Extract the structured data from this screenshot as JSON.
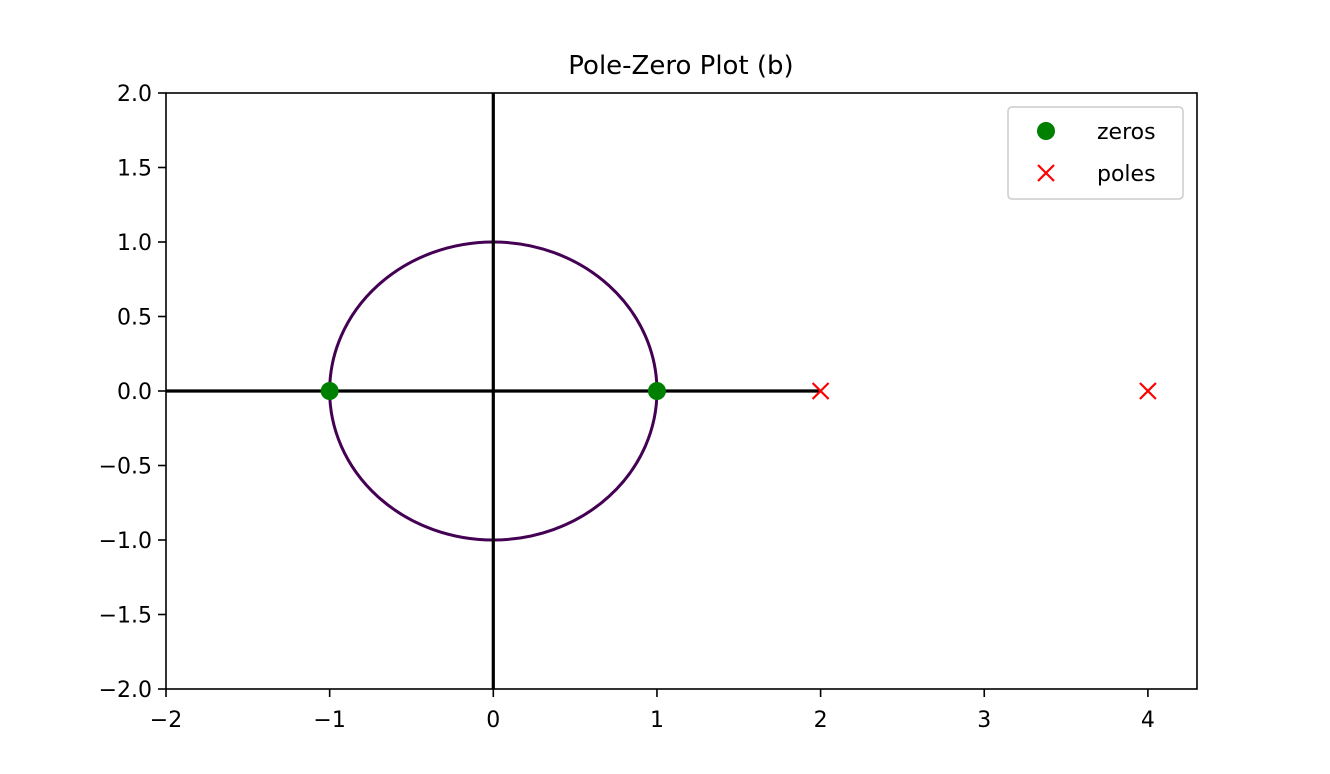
{
  "chart_data": {
    "type": "scatter",
    "title": "Pole-Zero Plot (b)",
    "xlabel": "",
    "ylabel": "",
    "xlim": [
      -2,
      4.3
    ],
    "ylim": [
      -2,
      2
    ],
    "x_ticks": [
      -2,
      -1,
      0,
      1,
      2,
      3,
      4
    ],
    "x_tick_labels": [
      "−2",
      "−1",
      "0",
      "1",
      "2",
      "3",
      "4"
    ],
    "y_ticks": [
      2.0,
      1.5,
      1.0,
      0.5,
      0.0,
      -0.5,
      -1.0,
      -1.5,
      -2.0
    ],
    "y_tick_labels": [
      "2.0",
      "1.5",
      "1.0",
      "0.5",
      "0.0",
      "−0.5",
      "−1.0",
      "−1.5",
      "−2.0"
    ],
    "grid": false,
    "legend_position": "top-right",
    "unit_circle": {
      "center": [
        0,
        0
      ],
      "radius": 1,
      "color": "#440154"
    },
    "axis_lines": {
      "horizontal": {
        "y": 0,
        "x_from": -2,
        "x_to": 2
      },
      "vertical": {
        "x": 0,
        "y_from": -2,
        "y_to": 2
      },
      "color": "#000000"
    },
    "series": [
      {
        "name": "zeros",
        "marker": "circle",
        "color": "#008000",
        "points": [
          {
            "x": -1,
            "y": 0
          },
          {
            "x": 1,
            "y": 0
          }
        ]
      },
      {
        "name": "poles",
        "marker": "x",
        "color": "#ff0000",
        "points": [
          {
            "x": 2,
            "y": 0
          },
          {
            "x": 4,
            "y": 0
          }
        ]
      }
    ]
  }
}
